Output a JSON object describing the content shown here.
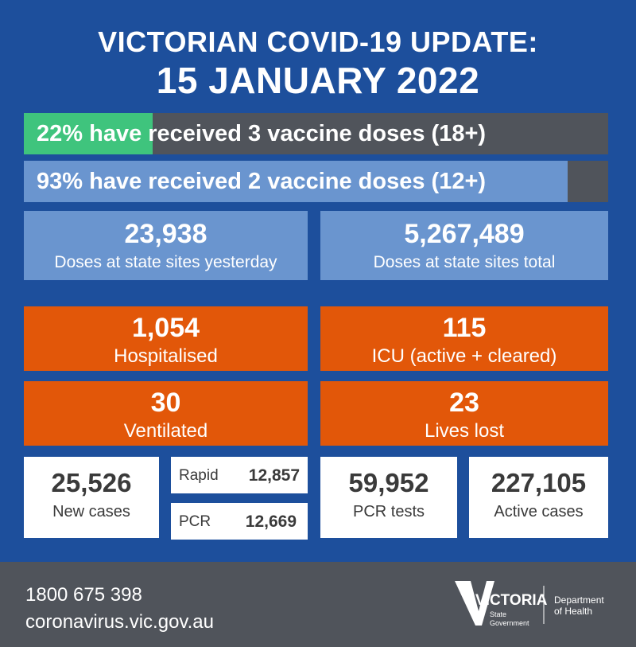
{
  "header": {
    "line1": "VICTORIAN COVID-19 UPDATE:",
    "line2": "15 JANUARY 2022"
  },
  "vaccination": [
    {
      "label": "22% have received 3 vaccine doses (18+)",
      "percent": 22,
      "fill_color": "#3fc47d"
    },
    {
      "label": "93% have received 2 vaccine doses (12+)",
      "percent": 93,
      "fill_color": "#6a95cf"
    }
  ],
  "doses": {
    "yesterday": {
      "value": "23,938",
      "label": "Doses at state sites yesterday"
    },
    "total": {
      "value": "5,267,489",
      "label": "Doses at state sites total"
    }
  },
  "hospital": {
    "hospitalised": {
      "value": "1,054",
      "label": "Hospitalised"
    },
    "icu": {
      "value": "115",
      "label": "ICU (active + cleared)"
    },
    "ventilated": {
      "value": "30",
      "label": "Ventilated"
    },
    "lives_lost": {
      "value": "23",
      "label": "Lives lost"
    }
  },
  "cases": {
    "new_cases": {
      "value": "25,526",
      "label": "New cases"
    },
    "rapid": {
      "label": "Rapid",
      "value": "12,857"
    },
    "pcr": {
      "label": "PCR",
      "value": "12,669"
    },
    "pcr_tests": {
      "value": "59,952",
      "label": "PCR tests"
    },
    "active_cases": {
      "value": "227,105",
      "label": "Active cases"
    }
  },
  "footer": {
    "phone": "1800 675 398",
    "website": "coronavirus.vic.gov.au",
    "logo": {
      "name": "VICTORIA",
      "sub1": "State",
      "sub2": "Government",
      "dept1": "Department",
      "dept2": "of Health"
    }
  },
  "colors": {
    "background": "#1d4f9c",
    "orange": "#e25709",
    "light_blue": "#6a95cf",
    "green": "#3fc47d",
    "grey": "#50545b"
  }
}
